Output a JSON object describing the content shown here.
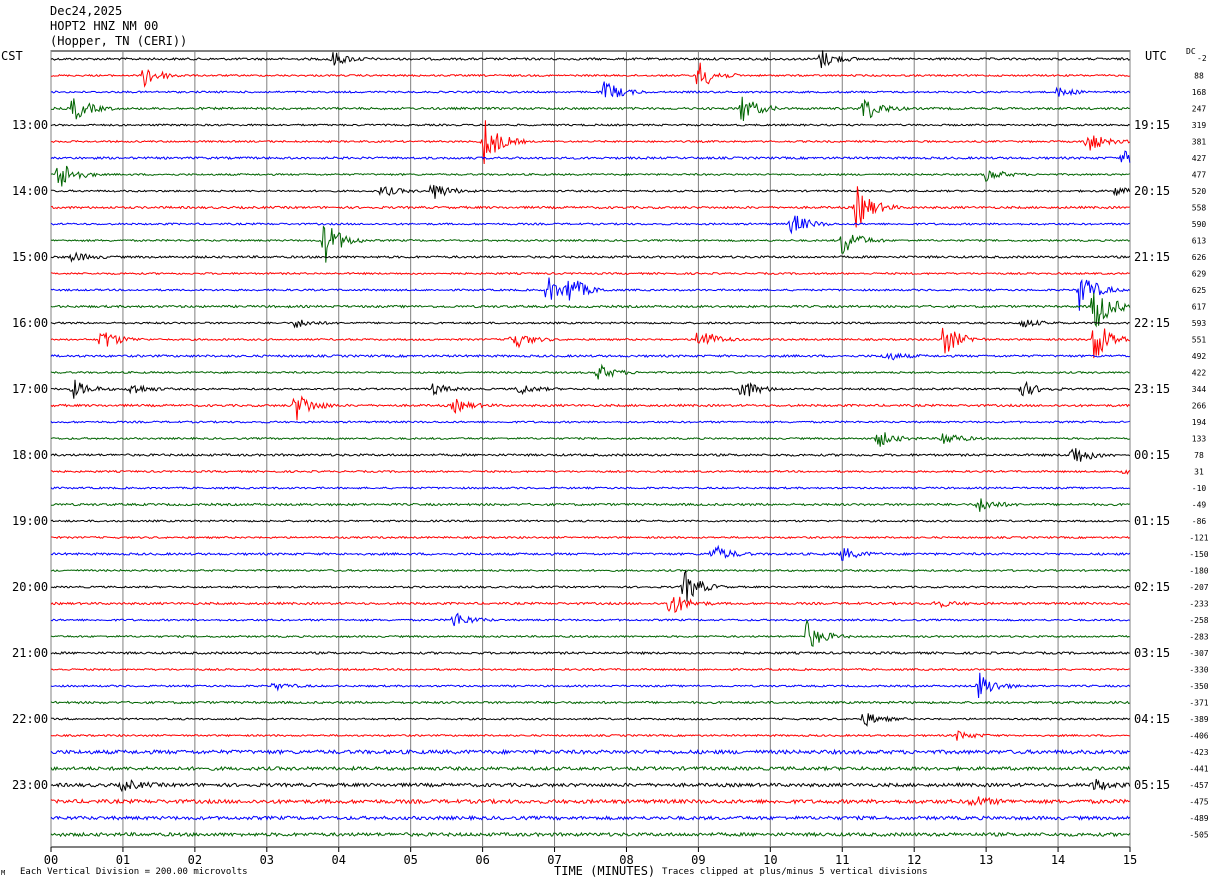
{
  "header": {
    "date": "Dec24,2025",
    "station": "HOPT2 HNZ NM 00",
    "location": "(Hopper, TN (CERI))"
  },
  "left_zone": "CST",
  "right_zone": "UTC",
  "dc_label": "DC",
  "dc_first": "-2",
  "footer": {
    "scale": "Each Vertical Division =  200.00 microvolts",
    "xlabel": "TIME (MINUTES)",
    "clip": "Traces clipped at plus/minus 5 vertical divisions",
    "corner_mark": "M"
  },
  "colors": {
    "trace_cycle": [
      "#000000",
      "#ff0000",
      "#0000ff",
      "#006400"
    ],
    "grid": "#808080"
  },
  "chart_data": {
    "type": "line",
    "title": "HOPT2 HNZ NM 00",
    "xlabel": "TIME (MINUTES)",
    "xlim": [
      0,
      15
    ],
    "x_ticks": [
      "00",
      "01",
      "02",
      "03",
      "04",
      "05",
      "06",
      "07",
      "08",
      "09",
      "10",
      "11",
      "12",
      "13",
      "14",
      "15"
    ],
    "grid": "vertical, every minute",
    "left_time_labels": [
      "13:00",
      "14:00",
      "15:00",
      "16:00",
      "17:00",
      "18:00",
      "19:00",
      "20:00",
      "21:00",
      "22:00",
      "23:00"
    ],
    "right_time_labels": [
      "19:15",
      "20:15",
      "21:15",
      "22:15",
      "23:15",
      "00:15",
      "01:15",
      "02:15",
      "03:15",
      "04:15",
      "05:15"
    ],
    "dc_offsets": [
      "88",
      "168",
      "247",
      "319",
      "381",
      "427",
      "477",
      "520",
      "558",
      "590",
      "613",
      "626",
      "629",
      "625",
      "617",
      "593",
      "551",
      "492",
      "422",
      "344",
      "266",
      "194",
      "133",
      "78",
      "31",
      "-10",
      "-49",
      "-86",
      "-121",
      "-150",
      "-180",
      "-207",
      "-233",
      "-258",
      "-283",
      "-307",
      "-330",
      "-350",
      "-371",
      "-389",
      "-406",
      "-423",
      "-441",
      "-457",
      "-475",
      "-489",
      "-505"
    ],
    "trace_count": 48,
    "traces_per_hour": 4,
    "events": [
      {
        "trace": 0,
        "minute": 3.9,
        "amp": 8
      },
      {
        "trace": 0,
        "minute": 10.7,
        "amp": 10
      },
      {
        "trace": 1,
        "minute": 1.3,
        "amp": 12
      },
      {
        "trace": 1,
        "minute": 9.0,
        "amp": 16
      },
      {
        "trace": 2,
        "minute": 7.7,
        "amp": 12
      },
      {
        "trace": 2,
        "minute": 14.0,
        "amp": 5
      },
      {
        "trace": 3,
        "minute": 0.3,
        "amp": 14
      },
      {
        "trace": 3,
        "minute": 9.6,
        "amp": 15
      },
      {
        "trace": 3,
        "minute": 11.3,
        "amp": 14
      },
      {
        "trace": 5,
        "minute": 6.0,
        "amp": 28
      },
      {
        "trace": 5,
        "minute": 14.4,
        "amp": 12
      },
      {
        "trace": 6,
        "minute": 14.9,
        "amp": 7
      },
      {
        "trace": 7,
        "minute": 0.1,
        "amp": 18
      },
      {
        "trace": 7,
        "minute": 13.0,
        "amp": 7
      },
      {
        "trace": 8,
        "minute": 5.3,
        "amp": 10
      },
      {
        "trace": 8,
        "minute": 4.6,
        "amp": 6
      },
      {
        "trace": 8,
        "minute": 14.8,
        "amp": 5
      },
      {
        "trace": 9,
        "minute": 11.2,
        "amp": 22
      },
      {
        "trace": 10,
        "minute": 10.3,
        "amp": 12
      },
      {
        "trace": 11,
        "minute": 3.8,
        "amp": 24
      },
      {
        "trace": 11,
        "minute": 11.0,
        "amp": 16
      },
      {
        "trace": 12,
        "minute": 0.3,
        "amp": 5
      },
      {
        "trace": 14,
        "minute": 6.9,
        "amp": 14
      },
      {
        "trace": 14,
        "minute": 7.2,
        "amp": 14
      },
      {
        "trace": 14,
        "minute": 14.3,
        "amp": 22
      },
      {
        "trace": 15,
        "minute": 14.5,
        "amp": 28
      },
      {
        "trace": 16,
        "minute": 3.4,
        "amp": 5
      },
      {
        "trace": 16,
        "minute": 13.5,
        "amp": 5
      },
      {
        "trace": 17,
        "minute": 0.7,
        "amp": 12
      },
      {
        "trace": 17,
        "minute": 6.4,
        "amp": 12
      },
      {
        "trace": 17,
        "minute": 9.0,
        "amp": 14
      },
      {
        "trace": 17,
        "minute": 12.4,
        "amp": 18
      },
      {
        "trace": 17,
        "minute": 14.5,
        "amp": 26
      },
      {
        "trace": 18,
        "minute": 11.6,
        "amp": 5
      },
      {
        "trace": 19,
        "minute": 7.6,
        "amp": 9
      },
      {
        "trace": 20,
        "minute": 0.3,
        "amp": 10
      },
      {
        "trace": 20,
        "minute": 1.1,
        "amp": 7
      },
      {
        "trace": 20,
        "minute": 5.3,
        "amp": 6
      },
      {
        "trace": 20,
        "minute": 6.5,
        "amp": 6
      },
      {
        "trace": 20,
        "minute": 9.6,
        "amp": 12
      },
      {
        "trace": 20,
        "minute": 13.5,
        "amp": 8
      },
      {
        "trace": 21,
        "minute": 3.4,
        "amp": 16
      },
      {
        "trace": 21,
        "minute": 5.6,
        "amp": 7
      },
      {
        "trace": 23,
        "minute": 11.5,
        "amp": 9
      },
      {
        "trace": 23,
        "minute": 12.4,
        "amp": 8
      },
      {
        "trace": 24,
        "minute": 14.2,
        "amp": 12
      },
      {
        "trace": 25,
        "minute": 14.9,
        "amp": 5
      },
      {
        "trace": 27,
        "minute": 12.9,
        "amp": 8
      },
      {
        "trace": 30,
        "minute": 9.2,
        "amp": 10
      },
      {
        "trace": 30,
        "minute": 11.0,
        "amp": 7
      },
      {
        "trace": 32,
        "minute": 8.8,
        "amp": 18
      },
      {
        "trace": 33,
        "minute": 8.6,
        "amp": 14
      },
      {
        "trace": 33,
        "minute": 12.3,
        "amp": 4
      },
      {
        "trace": 34,
        "minute": 5.6,
        "amp": 9
      },
      {
        "trace": 35,
        "minute": 10.5,
        "amp": 16
      },
      {
        "trace": 38,
        "minute": 3.1,
        "amp": 4
      },
      {
        "trace": 38,
        "minute": 12.9,
        "amp": 14
      },
      {
        "trace": 40,
        "minute": 11.3,
        "amp": 8
      },
      {
        "trace": 41,
        "minute": 12.6,
        "amp": 5
      },
      {
        "trace": 44,
        "minute": 1.0,
        "amp": 6
      },
      {
        "trace": 44,
        "minute": 14.5,
        "amp": 6
      },
      {
        "trace": 45,
        "minute": 12.8,
        "amp": 6
      }
    ]
  }
}
